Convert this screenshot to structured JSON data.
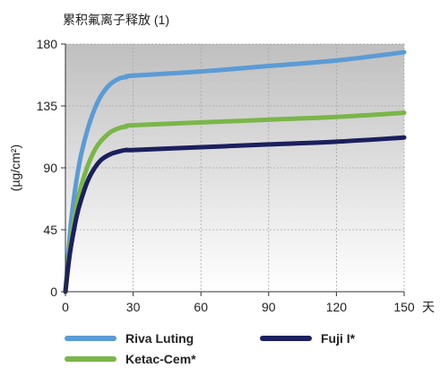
{
  "chart_data": {
    "type": "line",
    "title": "累积氟离子释放 (1)",
    "ylabel": "(µg/cm²)",
    "xunit": "天",
    "xlim": [
      0,
      150
    ],
    "ylim": [
      0,
      180
    ],
    "xticks": [
      0,
      30,
      60,
      90,
      120,
      150
    ],
    "yticks": [
      0,
      45,
      90,
      135,
      180
    ],
    "legend_position": "bottom",
    "series": [
      {
        "name": "Riva Luting",
        "color": "#5b9bd5",
        "x": [
          0,
          1,
          2,
          3,
          5,
          7,
          10,
          13,
          16,
          20,
          24,
          27,
          30,
          60,
          90,
          120,
          150
        ],
        "y": [
          0,
          22,
          42,
          58,
          82,
          100,
          119,
          133,
          143,
          151,
          155,
          156,
          157,
          160,
          164,
          168,
          174
        ]
      },
      {
        "name": "Ketac-Cem*",
        "color": "#7ab648",
        "x": [
          0,
          1,
          2,
          3,
          5,
          7,
          10,
          13,
          16,
          20,
          24,
          27,
          30,
          60,
          90,
          120,
          150
        ],
        "y": [
          0,
          18,
          32,
          44,
          63,
          77,
          92,
          103,
          110,
          116,
          119,
          120,
          121,
          123,
          125,
          127,
          130
        ]
      },
      {
        "name": "Fuji I*",
        "color": "#1c1f5e",
        "x": [
          0,
          1,
          2,
          3,
          5,
          7,
          10,
          13,
          16,
          20,
          24,
          27,
          30,
          60,
          90,
          120,
          150
        ],
        "y": [
          0,
          15,
          28,
          38,
          55,
          67,
          81,
          90,
          96,
          100,
          102,
          103,
          103,
          105,
          107,
          109,
          112
        ]
      }
    ]
  }
}
